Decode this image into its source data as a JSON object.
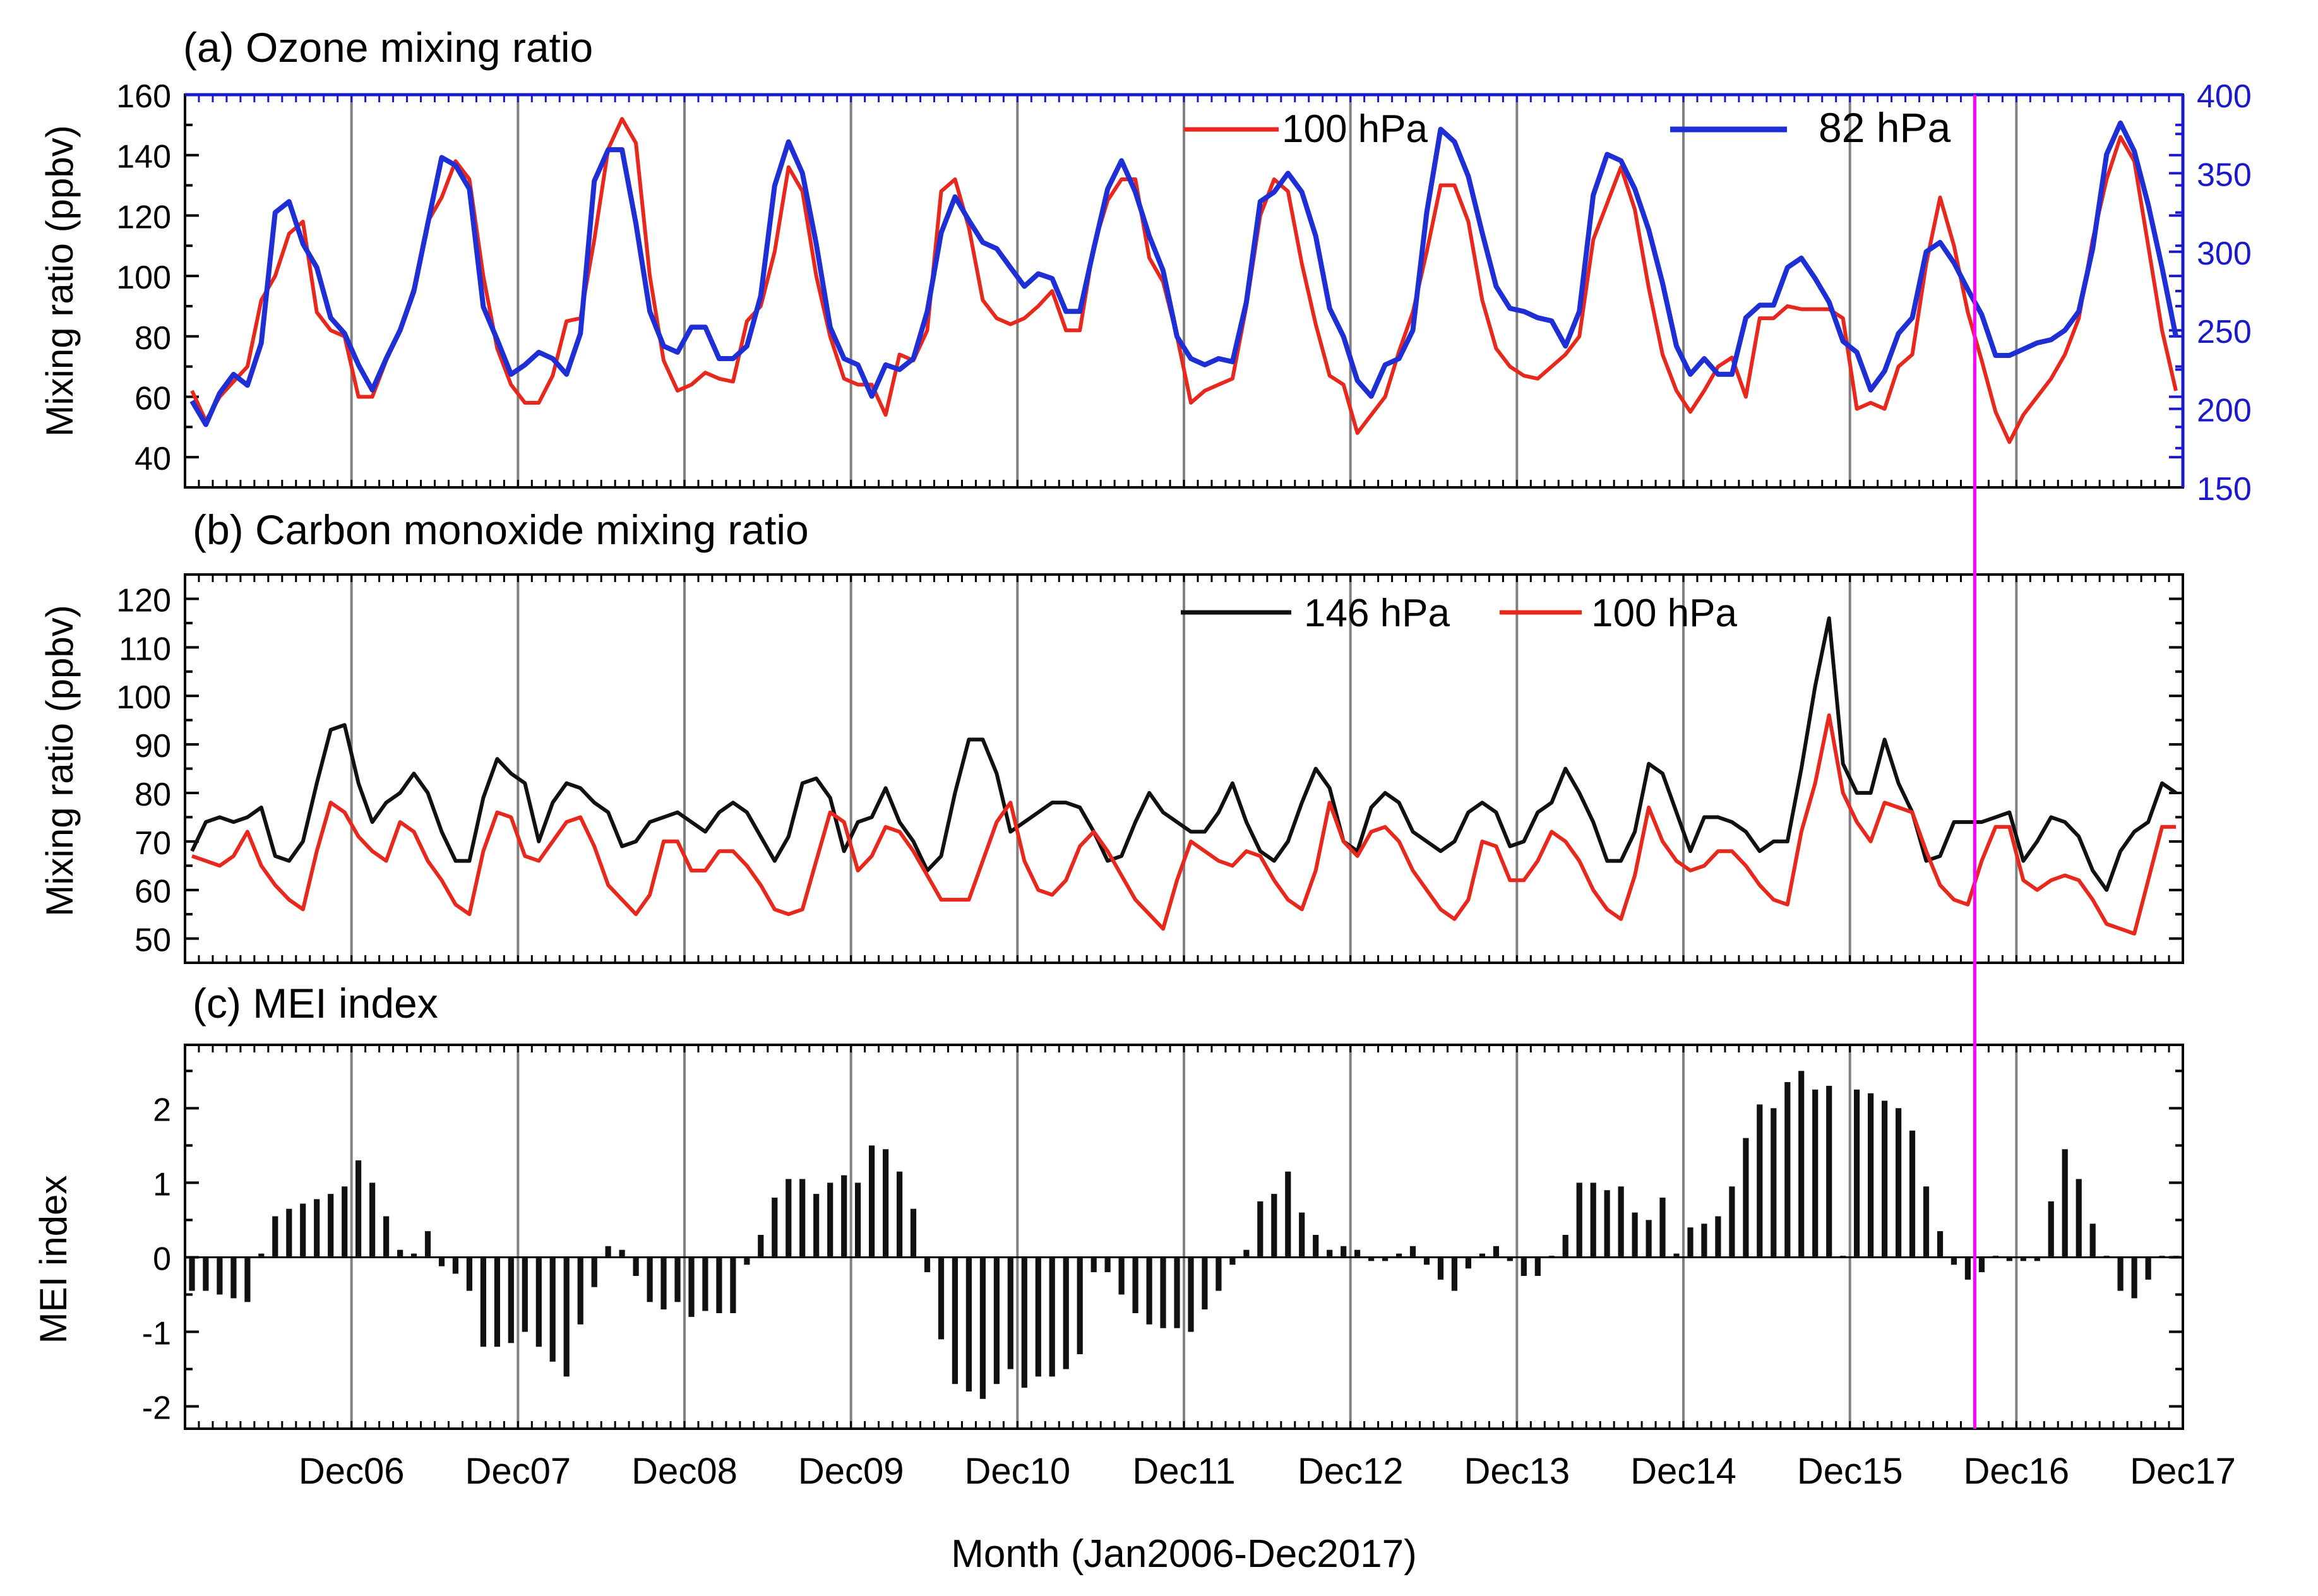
{
  "figure": {
    "xlabel": "Month (Jan2006-Dec2017)",
    "x_tick_labels": [
      "Dec06",
      "Dec07",
      "Dec08",
      "Dec09",
      "Dec10",
      "Dec11",
      "Dec12",
      "Dec13",
      "Dec14",
      "Dec15",
      "Dec16",
      "Dec17"
    ],
    "months": 144,
    "highlight_month_index": 129,
    "highlight_color": "#ff00ff",
    "grid_color": "#808080"
  },
  "chart_data": [
    {
      "type": "line",
      "panel": "a",
      "title": "(a) Ozone mixing ratio",
      "ylabel": "Mixing ratio (ppbv)",
      "ylim": [
        30,
        160
      ],
      "yticks": [
        40,
        60,
        80,
        100,
        120,
        140,
        160
      ],
      "y2lim": [
        150,
        400
      ],
      "y2ticks": [
        150,
        200,
        250,
        300,
        350,
        400
      ],
      "y2_color": "#1a1acc",
      "legend": [
        "100 hPa",
        "82 hPa"
      ],
      "series": [
        {
          "name": "100 hPa",
          "axis": "left",
          "color": "#e8281c",
          "values": [
            62,
            52,
            60,
            65,
            70,
            92,
            100,
            114,
            118,
            88,
            82,
            80,
            60,
            60,
            72,
            82,
            96,
            118,
            126,
            138,
            132,
            100,
            76,
            64,
            58,
            58,
            67,
            85,
            86,
            112,
            142,
            152,
            144,
            100,
            72,
            62,
            64,
            68,
            66,
            65,
            85,
            90,
            108,
            136,
            128,
            100,
            80,
            66,
            64,
            64,
            54,
            74,
            72,
            82,
            128,
            132,
            116,
            92,
            86,
            84,
            86,
            90,
            95,
            82,
            82,
            110,
            125,
            132,
            132,
            106,
            98,
            80,
            58,
            62,
            64,
            66,
            90,
            120,
            132,
            128,
            104,
            84,
            67,
            64,
            48,
            54,
            60,
            75,
            88,
            108,
            130,
            130,
            118,
            92,
            76,
            70,
            67,
            66,
            70,
            74,
            80,
            112,
            124,
            136,
            122,
            96,
            74,
            62,
            55,
            62,
            70,
            73,
            60,
            86,
            86,
            90,
            89,
            89,
            89,
            86,
            56,
            58,
            56,
            70,
            74,
            104,
            126,
            110,
            88,
            72,
            55,
            45,
            54,
            60,
            66,
            74,
            86,
            112,
            132,
            146,
            138,
            110,
            82,
            62
          ]
        },
        {
          "name": "82 hPa",
          "axis": "right",
          "color": "#1f2fd6",
          "values": [
            205,
            190,
            210,
            222,
            215,
            242,
            325,
            332,
            305,
            290,
            258,
            248,
            228,
            212,
            232,
            250,
            275,
            318,
            360,
            355,
            340,
            265,
            244,
            222,
            228,
            236,
            232,
            222,
            248,
            345,
            365,
            365,
            318,
            262,
            240,
            236,
            252,
            252,
            232,
            232,
            240,
            272,
            342,
            370,
            350,
            305,
            252,
            232,
            228,
            208,
            228,
            225,
            232,
            262,
            312,
            335,
            320,
            306,
            302,
            290,
            278,
            286,
            283,
            262,
            262,
            302,
            340,
            358,
            338,
            310,
            288,
            246,
            232,
            228,
            232,
            230,
            268,
            332,
            338,
            350,
            338,
            310,
            264,
            246,
            218,
            208,
            228,
            232,
            250,
            325,
            378,
            370,
            348,
            312,
            278,
            264,
            262,
            258,
            256,
            240,
            262,
            336,
            362,
            358,
            340,
            314,
            280,
            240,
            222,
            232,
            222,
            222,
            258,
            266,
            266,
            290,
            296,
            283,
            268,
            243,
            236,
            212,
            224,
            248,
            258,
            300,
            306,
            293,
            276,
            260,
            234,
            234,
            238,
            242,
            244,
            250,
            262,
            302,
            362,
            382,
            364,
            330,
            290,
            246
          ]
        }
      ]
    },
    {
      "type": "line",
      "panel": "b",
      "title": "(b) Carbon monoxide mixing ratio",
      "ylabel": "Mixing ratio (ppbv)",
      "ylim": [
        45,
        125
      ],
      "yticks": [
        50,
        60,
        70,
        80,
        90,
        100,
        110,
        120
      ],
      "legend": [
        "146 hPa",
        "100 hPa"
      ],
      "series": [
        {
          "name": "146 hPa",
          "color": "#111111",
          "values": [
            68,
            74,
            75,
            74,
            75,
            77,
            67,
            66,
            70,
            82,
            93,
            94,
            82,
            74,
            78,
            80,
            84,
            80,
            72,
            66,
            66,
            79,
            87,
            84,
            82,
            70,
            78,
            82,
            81,
            78,
            76,
            69,
            70,
            74,
            75,
            76,
            74,
            72,
            76,
            78,
            76,
            71,
            66,
            71,
            82,
            83,
            79,
            68,
            74,
            75,
            81,
            74,
            70,
            64,
            67,
            80,
            91,
            91,
            84,
            72,
            74,
            76,
            78,
            78,
            77,
            72,
            66,
            67,
            74,
            80,
            76,
            74,
            72,
            72,
            76,
            82,
            74,
            68,
            66,
            70,
            78,
            85,
            81,
            70,
            68,
            77,
            80,
            78,
            72,
            70,
            68,
            70,
            76,
            78,
            76,
            69,
            70,
            76,
            78,
            85,
            80,
            74,
            66,
            66,
            72,
            86,
            84,
            76,
            68,
            75,
            75,
            74,
            72,
            68,
            70,
            70,
            85,
            102,
            116,
            86,
            80,
            80,
            91,
            82,
            76,
            66,
            67,
            74,
            74,
            74,
            75,
            76,
            66,
            70,
            75,
            74,
            71,
            64,
            60,
            68,
            72,
            74,
            82,
            80
          ]
        },
        {
          "name": "100 hPa",
          "color": "#e8281c",
          "values": [
            67,
            66,
            65,
            67,
            72,
            65,
            61,
            58,
            56,
            68,
            78,
            76,
            71,
            68,
            66,
            74,
            72,
            66,
            62,
            57,
            55,
            68,
            76,
            75,
            67,
            66,
            70,
            74,
            75,
            69,
            61,
            58,
            55,
            59,
            70,
            70,
            64,
            64,
            68,
            68,
            65,
            61,
            56,
            55,
            56,
            66,
            76,
            74,
            64,
            67,
            73,
            72,
            68,
            63,
            58,
            58,
            58,
            66,
            74,
            78,
            66,
            60,
            59,
            62,
            69,
            72,
            68,
            63,
            58,
            55,
            52,
            62,
            70,
            68,
            66,
            65,
            68,
            67,
            62,
            58,
            56,
            64,
            78,
            70,
            67,
            72,
            73,
            70,
            64,
            60,
            56,
            54,
            58,
            70,
            69,
            62,
            62,
            66,
            72,
            70,
            66,
            60,
            56,
            54,
            63,
            77,
            70,
            66,
            64,
            65,
            68,
            68,
            65,
            61,
            58,
            57,
            72,
            82,
            96,
            80,
            74,
            70,
            78,
            77,
            76,
            68,
            61,
            58,
            57,
            66,
            73,
            73,
            62,
            60,
            62,
            63,
            62,
            58,
            53,
            52,
            51,
            62,
            73,
            73
          ]
        }
      ]
    },
    {
      "type": "bar",
      "panel": "c",
      "title": "(c) MEI index",
      "ylabel": "MEI index",
      "ylim": [
        -2.3,
        2.85
      ],
      "yticks": [
        -2,
        -1,
        0,
        1,
        2
      ],
      "color": "#111111",
      "values": [
        -0.45,
        -0.45,
        -0.5,
        -0.55,
        -0.6,
        0.05,
        0.55,
        0.65,
        0.72,
        0.78,
        0.85,
        0.95,
        1.3,
        1.0,
        0.55,
        0.1,
        0.05,
        0.35,
        -0.12,
        -0.22,
        -0.45,
        -1.2,
        -1.2,
        -1.15,
        -1.0,
        -1.2,
        -1.4,
        -1.6,
        -0.9,
        -0.4,
        0.15,
        0.1,
        -0.25,
        -0.6,
        -0.7,
        -0.6,
        -0.8,
        -0.72,
        -0.75,
        -0.75,
        -0.1,
        0.3,
        0.8,
        1.05,
        1.05,
        0.85,
        1.0,
        1.1,
        1.0,
        1.5,
        1.45,
        1.15,
        0.65,
        -0.2,
        -1.1,
        -1.7,
        -1.8,
        -1.9,
        -1.7,
        -1.5,
        -1.75,
        -1.6,
        -1.6,
        -1.5,
        -1.3,
        -0.2,
        -0.2,
        -0.5,
        -0.75,
        -0.9,
        -0.95,
        -0.95,
        -1.0,
        -0.7,
        -0.45,
        -0.1,
        0.1,
        0.75,
        0.85,
        1.15,
        0.6,
        0.3,
        0.1,
        0.15,
        0.1,
        -0.05,
        -0.05,
        0.05,
        0.15,
        -0.1,
        -0.3,
        -0.45,
        -0.15,
        0.05,
        0.15,
        -0.05,
        -0.25,
        -0.25,
        0.02,
        0.3,
        1.0,
        1.0,
        0.9,
        0.95,
        0.6,
        0.5,
        0.8,
        0.05,
        0.4,
        0.45,
        0.55,
        0.95,
        1.6,
        2.05,
        2.0,
        2.35,
        2.5,
        2.25,
        2.3,
        0.02,
        2.25,
        2.2,
        2.1,
        2.0,
        1.7,
        0.95,
        0.35,
        -0.1,
        -0.3,
        -0.2,
        0.02,
        -0.05,
        -0.05,
        -0.05,
        0.75,
        1.45,
        1.05,
        0.45,
        0.02,
        -0.45,
        -0.55,
        -0.3,
        0.02,
        0.02
      ]
    }
  ]
}
